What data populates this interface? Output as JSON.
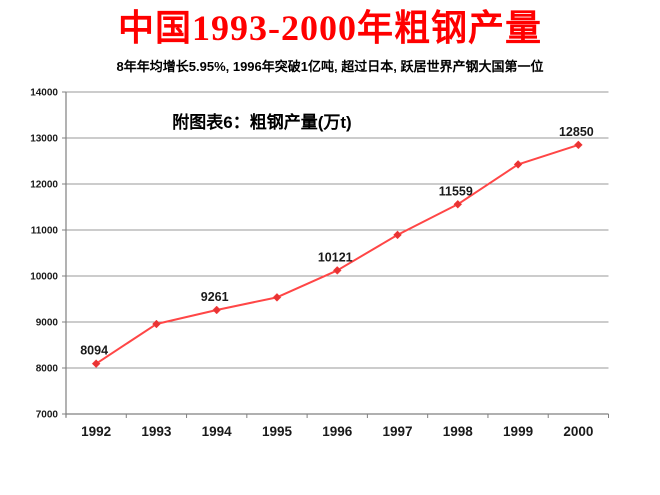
{
  "header": {
    "title": "中国1993-2000年粗钢产量",
    "subtitle": "8年年均增长5.95%, 1996年突破1亿吨, 超过日本, 跃居世界产钢大国第一位"
  },
  "colors": {
    "title": "#ff0000",
    "subtitle": "#000000",
    "series_line": "#ff4646",
    "series_marker": "#e83333",
    "gridline": "#999999",
    "axis": "#808080",
    "tick_label": "#1a1a1a",
    "data_label": "#1a1a1a"
  },
  "chart_data": {
    "type": "line",
    "inner_title": "附图表6：粗钢产量(万t)",
    "x": [
      "1992",
      "1993",
      "1994",
      "1995",
      "1996",
      "1997",
      "1998",
      "1999",
      "2000"
    ],
    "series": [
      {
        "name": "粗钢产量(万t)",
        "values": [
          8094,
          8956,
          9261,
          9536,
          10121,
          10894,
          11559,
          12426,
          12850
        ]
      }
    ],
    "point_labels": [
      "8094",
      "",
      "9261",
      "",
      "10121",
      "",
      "11559",
      "",
      "12850"
    ],
    "ylim": [
      7000,
      14000
    ],
    "yticks": [
      7000,
      8000,
      9000,
      10000,
      11000,
      12000,
      13000,
      14000
    ],
    "xlabel": "",
    "ylabel": "",
    "grid": true,
    "legend_position": "none",
    "marker": "diamond"
  }
}
